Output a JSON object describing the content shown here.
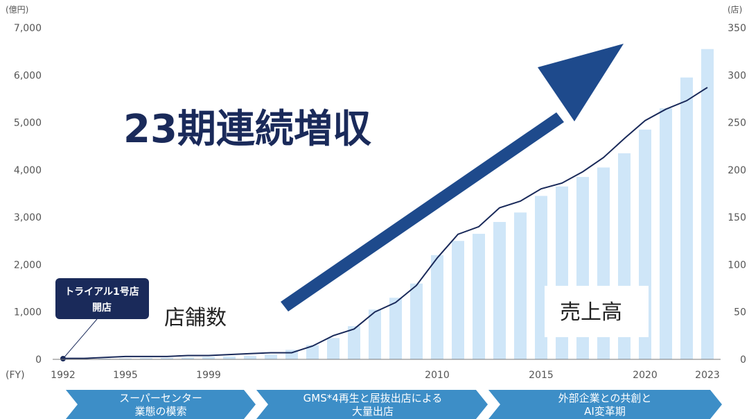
{
  "chart_data": {
    "type": "bar",
    "headline": "23期連続増収",
    "left_unit": "(億円)",
    "right_unit": "(店)",
    "fy_label": "(FY)",
    "years": [
      1992,
      1993,
      1994,
      1995,
      1996,
      1997,
      1998,
      1999,
      2000,
      2001,
      2002,
      2003,
      2004,
      2005,
      2006,
      2007,
      2008,
      2009,
      2010,
      2011,
      2012,
      2013,
      2014,
      2015,
      2016,
      2017,
      2018,
      2019,
      2020,
      2021,
      2022,
      2023
    ],
    "x_tick_labels": [
      "1992",
      "1995",
      "1999",
      "2010",
      "2015",
      "2020",
      "2023"
    ],
    "ylim_left": [
      0,
      7000
    ],
    "ylim_right": [
      0,
      350
    ],
    "left_ticks": [
      "0",
      "1,000",
      "2,000",
      "3,000",
      "4,000",
      "5,000",
      "6,000",
      "7,000"
    ],
    "right_ticks": [
      "0",
      "50",
      "100",
      "150",
      "200",
      "250",
      "300",
      "350"
    ],
    "series": [
      {
        "name": "売上高",
        "kind": "bar",
        "axis": "left",
        "values": [
          5,
          10,
          15,
          20,
          25,
          30,
          40,
          50,
          60,
          70,
          100,
          200,
          300,
          450,
          700,
          1050,
          1300,
          1600,
          2200,
          2500,
          2650,
          2900,
          3100,
          3450,
          3650,
          3850,
          4050,
          4350,
          4850,
          5300,
          5950,
          6550
        ]
      },
      {
        "name": "店舗数",
        "kind": "line",
        "axis": "right",
        "values": [
          1,
          1,
          2,
          3,
          3,
          3,
          4,
          4,
          5,
          6,
          7,
          7,
          14,
          25,
          32,
          50,
          60,
          78,
          107,
          132,
          140,
          160,
          167,
          180,
          186,
          198,
          213,
          233,
          252,
          264,
          273,
          287
        ]
      }
    ],
    "callout": {
      "line1": "トライアル1号店",
      "line2": "開店"
    },
    "phases": [
      {
        "line1": "スーパーセンター",
        "line2": "業態の模索"
      },
      {
        "line1": "GMS*4再生と居抜出店による",
        "line2": "大量出店"
      },
      {
        "line1": "外部企業との共創と",
        "line2": "AI変革期"
      }
    ],
    "colors": {
      "bar": "#cfe6f8",
      "line": "#1a2a5a",
      "arrow": "#1e4a8c",
      "callout": "#1a2a5a",
      "phase": "#3d8ec7",
      "axis": "#777777"
    }
  }
}
